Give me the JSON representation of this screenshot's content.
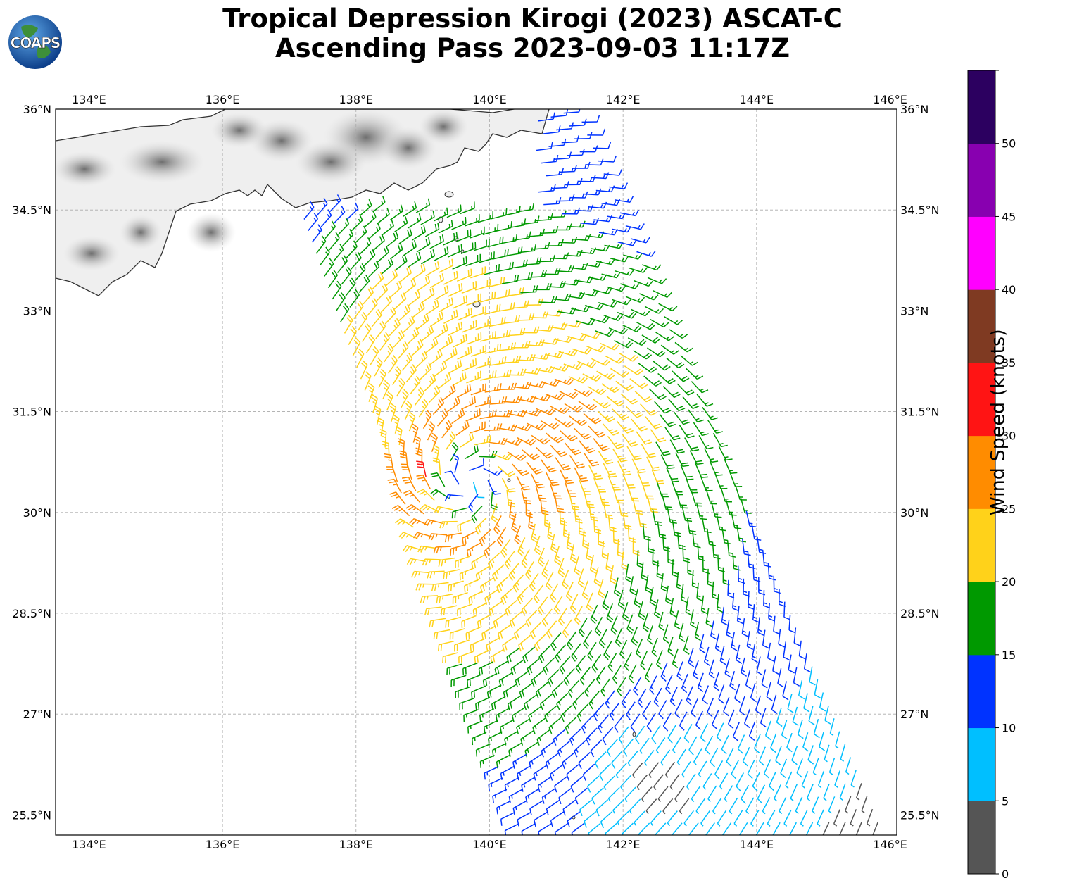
{
  "title": {
    "line1": "Tropical Depression Kirogi (2023) ASCAT-C",
    "line2": "Ascending Pass 2023-09-03 11:17Z"
  },
  "logo": {
    "text": "COAPS",
    "icon": "globe-icon"
  },
  "map": {
    "lon_ticks": [
      "134°E",
      "136°E",
      "138°E",
      "140°E",
      "142°E",
      "144°E",
      "146°E"
    ],
    "lat_ticks": [
      "36°N",
      "34.5°N",
      "33°N",
      "31.5°N",
      "30°N",
      "28.5°N",
      "27°N",
      "25.5°N"
    ],
    "extent": {
      "lon_min": 133.5,
      "lon_max": 146.1,
      "lat_min": 25.2,
      "lat_max": 36.0
    },
    "storm_center": {
      "lon": 139.7,
      "lat": 30.45
    },
    "swath": {
      "nw": [
        137.1,
        34.7
      ],
      "ne": [
        141.3,
        36.0
      ],
      "se": [
        145.9,
        25.2
      ],
      "sw": [
        140.5,
        25.2
      ]
    }
  },
  "colorbar": {
    "label": "Wind Speed (knots)",
    "ticks": [
      "0",
      "5",
      "10",
      "15",
      "20",
      "25",
      "30",
      "35",
      "40",
      "45",
      "50"
    ],
    "colors": [
      "#555555",
      "#00bfff",
      "#0033ff",
      "#009900",
      "#ffd21a",
      "#ff8c00",
      "#ff1414",
      "#7f3a22",
      "#ff00ff",
      "#8800b0",
      "#2c0060"
    ]
  }
}
